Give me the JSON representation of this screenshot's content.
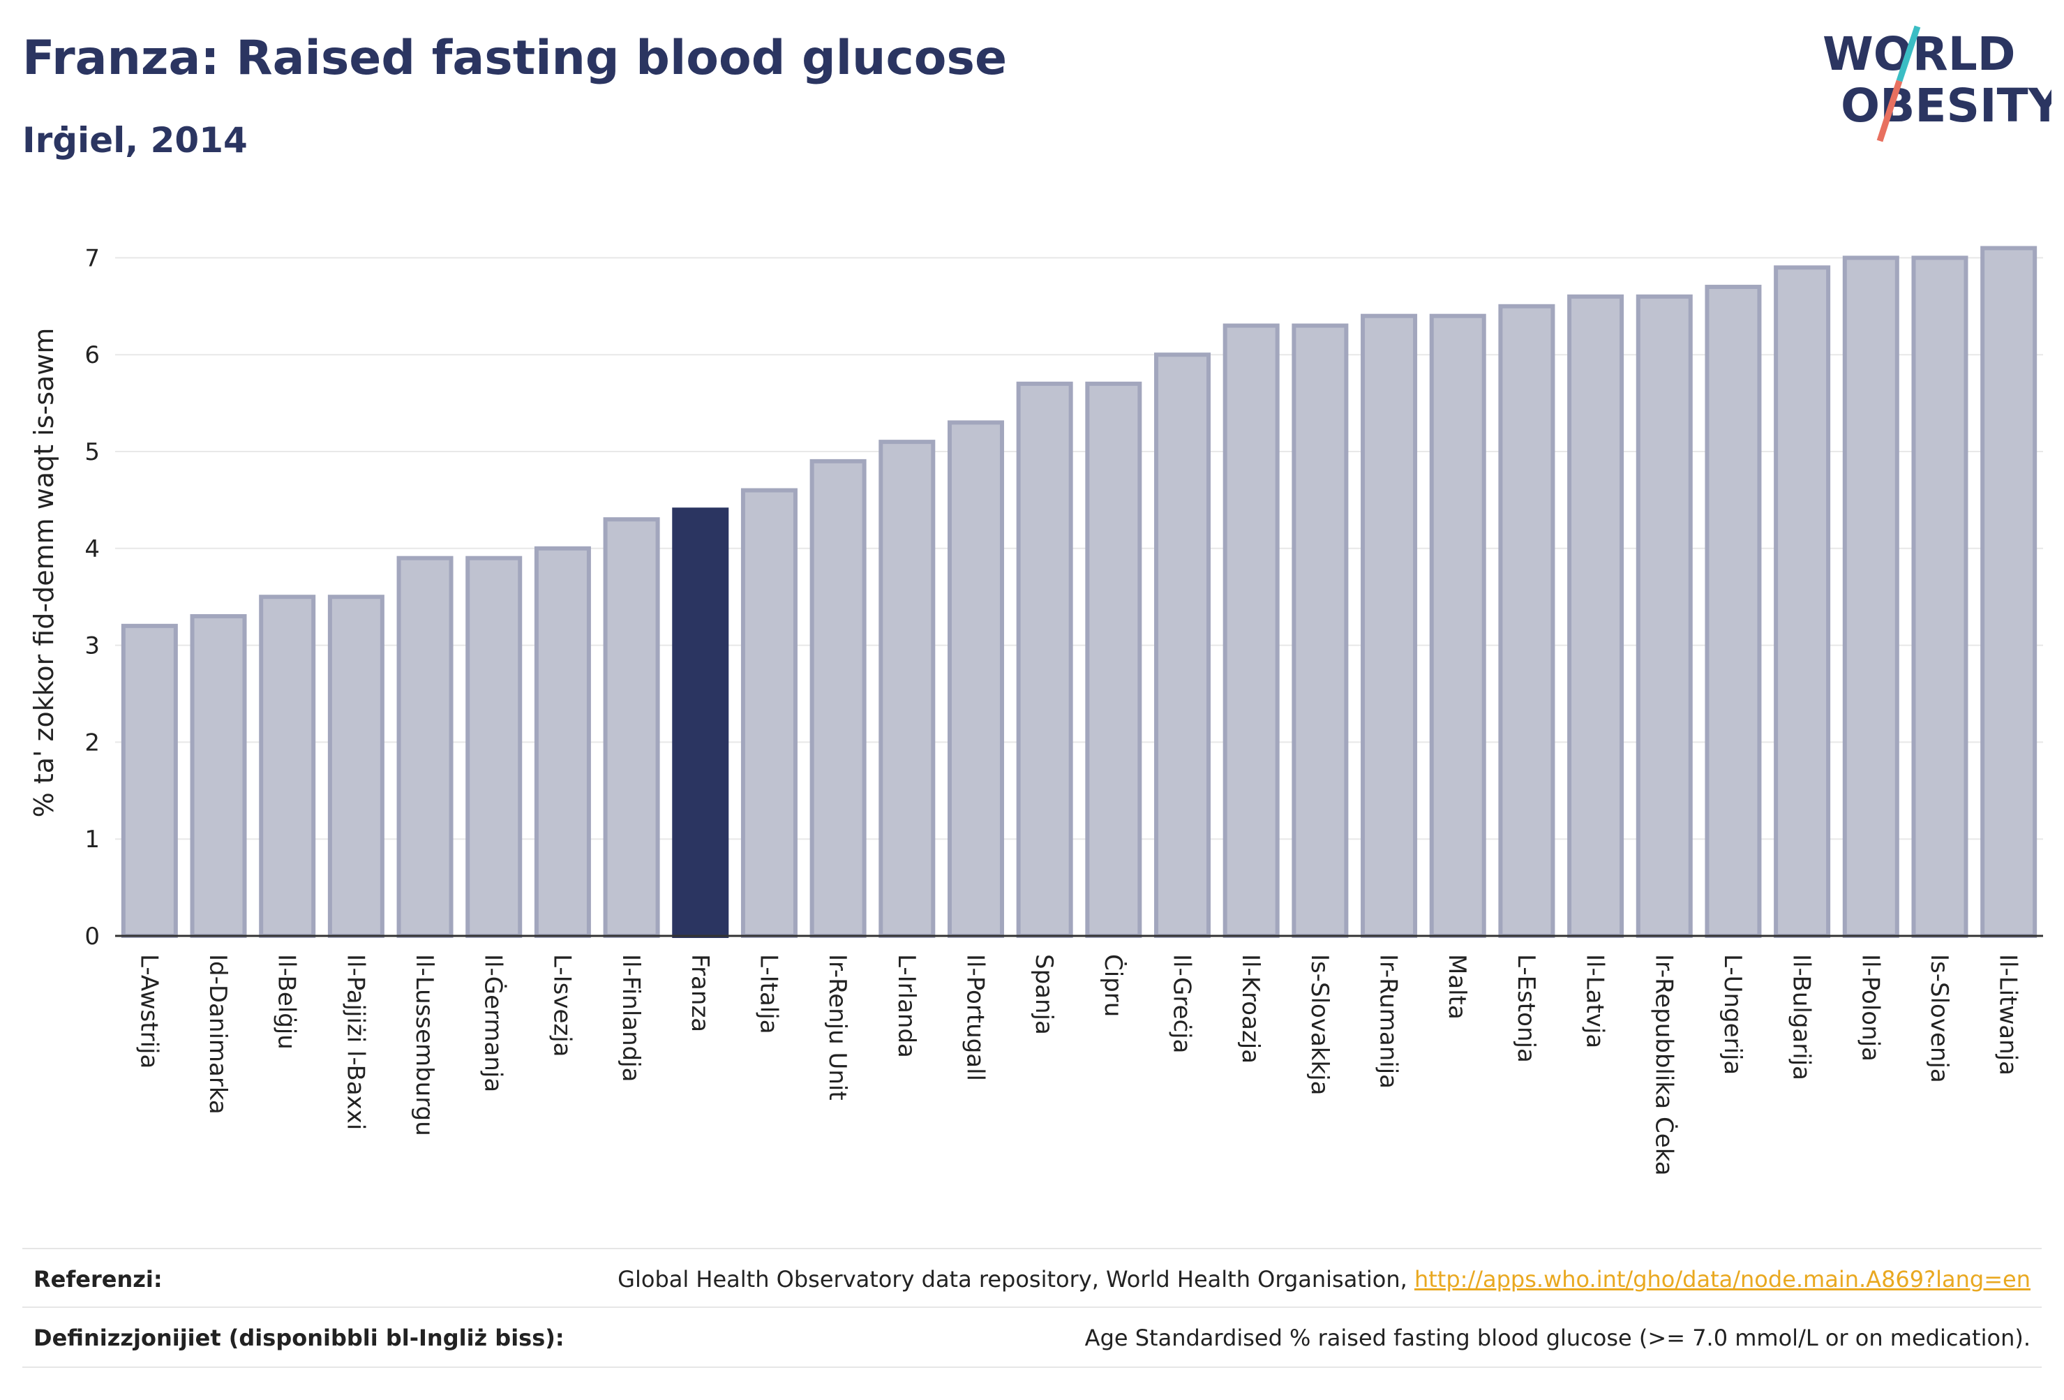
{
  "title": "Franza: Raised fasting blood glucose",
  "subtitle": "Irġiel, 2014",
  "logo": {
    "line1": "WORLD",
    "line2": "OBESITY",
    "accent_teal": "#3bbdc4",
    "accent_red": "#e8705f",
    "text_color": "#2b3561"
  },
  "footer": {
    "ref_label": "Referenzi:",
    "ref_text": "Global Health Observatory data repository, World Health Organisation,",
    "ref_link": "http://apps.who.int/gho/data/node.main.A869?lang=en",
    "def_label": "Definizzjonijiet (disponibbli bl-Ingliż biss):",
    "def_text": "Age Standardised % raised fasting blood glucose (>= 7.0 mmol/L or on medication)."
  },
  "chart_data": {
    "type": "bar",
    "title": "Franza: Raised fasting blood glucose",
    "subtitle": "Irġiel, 2014",
    "xlabel": "",
    "ylabel": "% ta' zokkor fid-demm waqt is-sawm",
    "ylim": [
      0,
      7.5
    ],
    "yticks": [
      0,
      1,
      2,
      3,
      4,
      5,
      6,
      7
    ],
    "grid": true,
    "highlight": "Franza",
    "colors": {
      "bar": "#bfc2d0",
      "bar_border": "#a2a6bd",
      "highlight": "#2b3561"
    },
    "categories": [
      "L-Awstrija",
      "Id-Danimarka",
      "Il-Belġju",
      "Il-Pajjiżi l-Baxxi",
      "Il-Lussemburgu",
      "Il-Ġermanja",
      "L-Isvezja",
      "Il-Finlandja",
      "Franza",
      "L-Italja",
      "Ir-Renju Unit",
      "L-Irlanda",
      "Il-Portugall",
      "Spanja",
      "Ċipru",
      "Il-Greċja",
      "Il-Kroazja",
      "Is-Slovakkja",
      "Ir-Rumanija",
      "Malta",
      "L-Estonja",
      "Il-Latvja",
      "Ir-Repubblika Ċeka",
      "L-Ungerija",
      "Il-Bulgarija",
      "Il-Polonja",
      "Is-Slovenja",
      "Il-Litwanja"
    ],
    "values": [
      3.2,
      3.3,
      3.5,
      3.5,
      3.9,
      3.9,
      4.0,
      4.3,
      4.4,
      4.6,
      4.9,
      5.1,
      5.3,
      5.7,
      5.7,
      6.0,
      6.3,
      6.3,
      6.4,
      6.4,
      6.5,
      6.6,
      6.6,
      6.7,
      6.9,
      7.0,
      7.0,
      7.1
    ]
  }
}
